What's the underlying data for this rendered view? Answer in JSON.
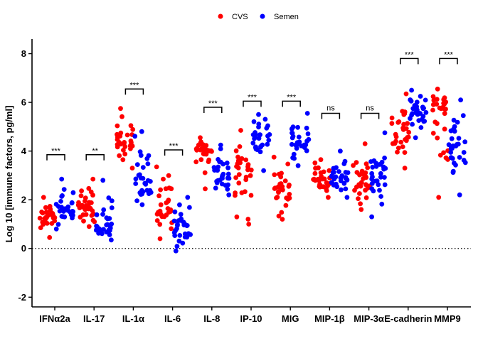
{
  "chart_data": {
    "type": "scatter",
    "ylabel": "Log 10 [immune factors, pg/ml]",
    "ylim": [
      -2.4,
      8.6
    ],
    "yticks": [
      -2,
      0,
      2,
      4,
      6,
      8
    ],
    "legend": {
      "placement": "top-center"
    },
    "zero_line": {
      "y": 0,
      "style": "dotted"
    },
    "series": [
      {
        "name": "CVS",
        "color": "#ff0000"
      },
      {
        "name": "Semen",
        "color": "#0000ff"
      }
    ],
    "categories": [
      "IFNα2a",
      "IL-17",
      "IL-1α",
      "IL-6",
      "IL-8",
      "IP-10",
      "MIG",
      "MIP-1β",
      "MIP-3α",
      "E-cadherin",
      "MMP9"
    ],
    "groups": [
      {
        "cvs": {
          "center": 1.3,
          "min": 0.45,
          "max": 2.1
        },
        "semen": {
          "center": 1.6,
          "min": 0.8,
          "max": 2.85
        },
        "significance": "***",
        "bracket_y": 3.85
      },
      {
        "cvs": {
          "center": 1.6,
          "min": 0.9,
          "max": 2.85
        },
        "semen": {
          "center": 1.0,
          "min": 0.35,
          "max": 2.8
        },
        "significance": "**",
        "bracket_y": 3.85
      },
      {
        "cvs": {
          "center": 4.3,
          "min": 3.3,
          "max": 5.75
        },
        "semen": {
          "center": 2.4,
          "min": 1.8,
          "max": 4.8
        },
        "significance": "***",
        "bracket_y": 6.55
      },
      {
        "cvs": {
          "center": 1.9,
          "min": 0.4,
          "max": 3.35
        },
        "semen": {
          "center": 0.8,
          "min": -0.1,
          "max": 2.1
        },
        "significance": "***",
        "bracket_y": 4.05
      },
      {
        "cvs": {
          "center": 4.0,
          "min": 2.45,
          "max": 4.55
        },
        "semen": {
          "center": 3.0,
          "min": 2.2,
          "max": 4.25
        },
        "significance": "***",
        "bracket_y": 5.8
      },
      {
        "cvs": {
          "center": 3.2,
          "min": 1.0,
          "max": 4.85
        },
        "semen": {
          "center": 4.6,
          "min": 3.2,
          "max": 5.5
        },
        "significance": "***",
        "bracket_y": 6.05
      },
      {
        "cvs": {
          "center": 2.2,
          "min": 1.2,
          "max": 3.75
        },
        "semen": {
          "center": 4.4,
          "min": 3.4,
          "max": 5.55
        },
        "significance": "***",
        "bracket_y": 6.05
      },
      {
        "cvs": {
          "center": 2.8,
          "min": 2.1,
          "max": 3.65
        },
        "semen": {
          "center": 2.9,
          "min": 2.1,
          "max": 4.0
        },
        "significance": "ns",
        "bracket_y": 5.55
      },
      {
        "cvs": {
          "center": 2.8,
          "min": 1.6,
          "max": 4.3
        },
        "semen": {
          "center": 3.0,
          "min": 1.3,
          "max": 4.75
        },
        "significance": "ns",
        "bracket_y": 5.55
      },
      {
        "cvs": {
          "center": 4.8,
          "min": 3.3,
          "max": 6.35
        },
        "semen": {
          "center": 5.6,
          "min": 4.55,
          "max": 6.5
        },
        "significance": "***",
        "bracket_y": 7.8
      },
      {
        "cvs": {
          "center": 5.7,
          "min": 2.1,
          "max": 6.55
        },
        "semen": {
          "center": 3.8,
          "min": 2.2,
          "max": 6.1
        },
        "significance": "***",
        "bracket_y": 7.8
      }
    ]
  }
}
